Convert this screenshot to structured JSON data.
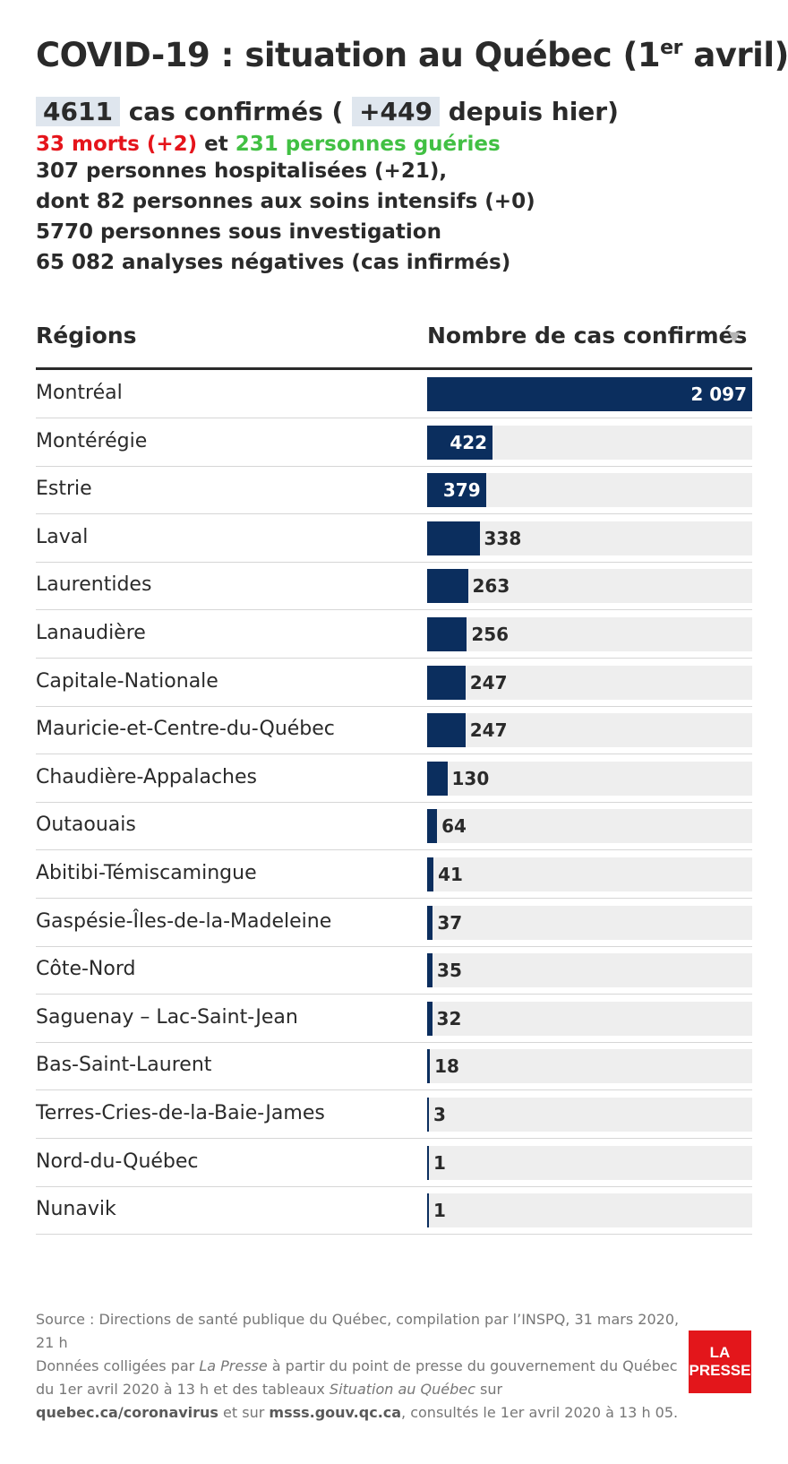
{
  "title": {
    "main": "COVID-19 : situation au Québec (1",
    "sup": "er",
    "end": " avril)"
  },
  "summary": {
    "cases": "4611",
    "cases_text": "cas confirmés (",
    "increase": "+449",
    "increase_text": "depuis hier)",
    "deaths": "33 morts (+2)",
    "deaths_connector": " et ",
    "recovered": "231 personnes guéries",
    "stats": [
      "307 personnes hospitalisées (+21),",
      "dont 82 personnes aux soins intensifs (+0)",
      "5770 personnes sous investigation",
      "65 082 analyses négatives (cas infirmés)"
    ]
  },
  "table": {
    "col_regions": "Régions",
    "col_cases": "Nombre de cas confirmés",
    "sort_icon": "▼"
  },
  "colors": {
    "bar": "#0b2e5e",
    "track": "#eeeeee",
    "deaths": "#e5141b",
    "recovered": "#41c043",
    "highlight": "#dfe6ee",
    "logo": "#e3161b"
  },
  "chart_data": {
    "type": "bar",
    "orientation": "horizontal",
    "xlabel": "Nombre de cas confirmés",
    "categories": [
      "Montréal",
      "Montérégie",
      "Estrie",
      "Laval",
      "Laurentides",
      "Lanaudière",
      "Capitale-Nationale",
      "Mauricie-et-Centre-du-Québec",
      "Chaudière-Appalaches",
      "Outaouais",
      "Abitibi-Témiscamingue",
      "Gaspésie-Îles-de-la-Madeleine",
      "Côte-Nord",
      "Saguenay – Lac-Saint-Jean",
      "Bas-Saint-Laurent",
      "Terres-Cries-de-la-Baie-James",
      "Nord-du-Québec",
      "Nunavik"
    ],
    "values": [
      2097,
      422,
      379,
      338,
      263,
      256,
      247,
      247,
      130,
      64,
      41,
      37,
      35,
      32,
      18,
      3,
      1,
      1
    ],
    "value_labels": [
      "2 097",
      "422",
      "379",
      "338",
      "263",
      "256",
      "247",
      "247",
      "130",
      "64",
      "41",
      "37",
      "35",
      "32",
      "18",
      "3",
      "1",
      "1"
    ],
    "xlim": [
      0,
      2097
    ]
  },
  "footer": {
    "source": "Source : Directions de santé publique du Québec, compilation par l’INSPQ, 31 mars 2020, 21 h",
    "line_a": "Données colligées par ",
    "lapresse": "La Presse",
    "line_b": " à partir du point de presse du gouvernement du Québec du 1er avril 2020 à 13 h et des tableaux ",
    "situation": "Situation au Québec",
    "line_c": " sur ",
    "link1": "quebec.ca/coronavirus",
    "line_d": " et sur ",
    "link2": "msss.gouv.qc.ca",
    "line_e": ", consultés le 1er avril 2020 à 13 h 05."
  },
  "logo": {
    "line1": "LA",
    "line2": "PRESSE"
  }
}
